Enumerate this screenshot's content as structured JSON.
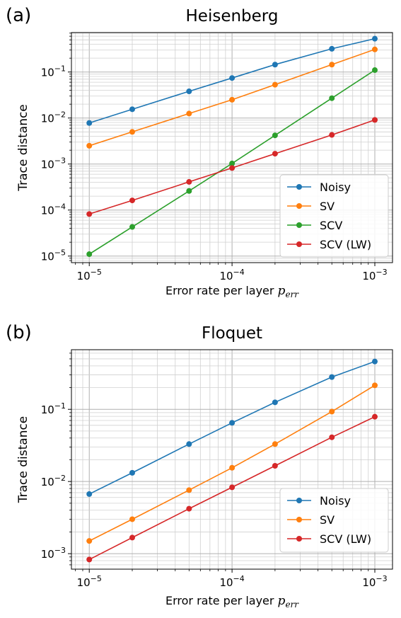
{
  "chart_data": [
    {
      "type": "line",
      "panel_label": "(a)",
      "title": "Heisenberg",
      "xlabel": "Error rate per layer",
      "xlabel_math": "p",
      "xlabel_sub": "err",
      "ylabel": "Trace distance",
      "xscale": "log",
      "yscale": "log",
      "xlim": [
        7.5e-06,
        0.00133
      ],
      "ylim": [
        7.2e-06,
        0.72
      ],
      "grid": "major and minor",
      "legend_position": "lower-right",
      "x": [
        1e-05,
        2e-05,
        5e-05,
        0.0001,
        0.0002,
        0.0005,
        0.001
      ],
      "x_ticks": [
        {
          "value": 1e-05,
          "base": "10",
          "exp": "−5"
        },
        {
          "value": 0.0001,
          "base": "10",
          "exp": "−4"
        },
        {
          "value": 0.001,
          "base": "10",
          "exp": "−3"
        }
      ],
      "y_ticks": [
        {
          "value": 1e-05,
          "base": "10",
          "exp": "−5"
        },
        {
          "value": 0.0001,
          "base": "10",
          "exp": "−4"
        },
        {
          "value": 0.001,
          "base": "10",
          "exp": "−3"
        },
        {
          "value": 0.01,
          "base": "10",
          "exp": "−2"
        },
        {
          "value": 0.1,
          "base": "10",
          "exp": "−1"
        }
      ],
      "series": [
        {
          "name": "Noisy",
          "color": "#1f77b4",
          "values": [
            0.0078,
            0.0155,
            0.038,
            0.074,
            0.145,
            0.32,
            0.53
          ]
        },
        {
          "name": "SV",
          "color": "#ff7f0e",
          "values": [
            0.0025,
            0.005,
            0.0125,
            0.025,
            0.053,
            0.145,
            0.31
          ]
        },
        {
          "name": "SCV",
          "color": "#2ca02c",
          "values": [
            1.1e-05,
            4.3e-05,
            0.00026,
            0.00103,
            0.0042,
            0.027,
            0.11
          ]
        },
        {
          "name": "SCV (LW)",
          "color": "#d62728",
          "values": [
            8.2e-05,
            0.000162,
            0.00041,
            0.00082,
            0.00168,
            0.0043,
            0.0091
          ]
        }
      ]
    },
    {
      "type": "line",
      "panel_label": "(b)",
      "title": "Floquet",
      "xlabel": "Error rate per layer",
      "xlabel_math": "p",
      "xlabel_sub": "err",
      "ylabel": "Trace distance",
      "xscale": "log",
      "yscale": "log",
      "xlim": [
        7.5e-06,
        0.00133
      ],
      "ylim": [
        0.00061,
        0.67
      ],
      "grid": "major and minor",
      "legend_position": "lower-right",
      "x": [
        1e-05,
        2e-05,
        5e-05,
        0.0001,
        0.0002,
        0.0005,
        0.001
      ],
      "x_ticks": [
        {
          "value": 1e-05,
          "base": "10",
          "exp": "−5"
        },
        {
          "value": 0.0001,
          "base": "10",
          "exp": "−4"
        },
        {
          "value": 0.001,
          "base": "10",
          "exp": "−3"
        }
      ],
      "y_ticks": [
        {
          "value": 0.001,
          "base": "10",
          "exp": "−3"
        },
        {
          "value": 0.01,
          "base": "10",
          "exp": "−2"
        },
        {
          "value": 0.1,
          "base": "10",
          "exp": "−1"
        }
      ],
      "series": [
        {
          "name": "Noisy",
          "color": "#1f77b4",
          "values": [
            0.0067,
            0.0132,
            0.033,
            0.065,
            0.125,
            0.28,
            0.46
          ]
        },
        {
          "name": "SV",
          "color": "#ff7f0e",
          "values": [
            0.0015,
            0.003,
            0.0076,
            0.0155,
            0.033,
            0.093,
            0.215
          ]
        },
        {
          "name": "SCV (LW)",
          "color": "#d62728",
          "values": [
            0.00083,
            0.00167,
            0.0042,
            0.0083,
            0.0165,
            0.041,
            0.079
          ]
        }
      ]
    }
  ]
}
